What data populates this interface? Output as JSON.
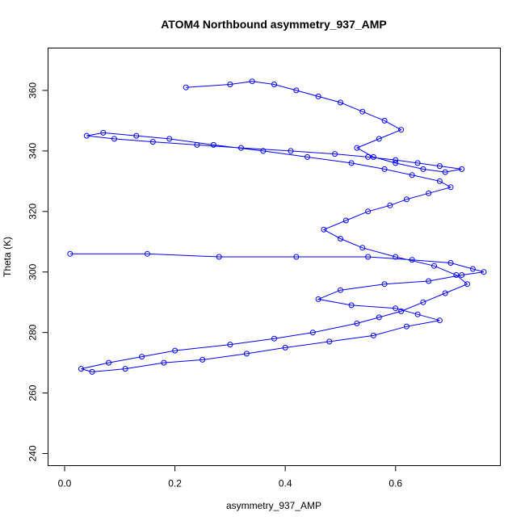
{
  "chart_data": {
    "type": "scatter",
    "title": "ATOM4 Northbound asymmetry_937_AMP",
    "xlabel": "asymmetry_937_AMP",
    "ylabel": "Theta (K)",
    "xlim": [
      -0.03,
      0.79
    ],
    "ylim": [
      236,
      374
    ],
    "xticks": [
      0.0,
      0.2,
      0.4,
      0.6
    ],
    "xtick_labels": [
      "0.0",
      "0.2",
      "0.4",
      "0.6"
    ],
    "yticks": [
      240,
      260,
      280,
      300,
      320,
      340,
      360
    ],
    "ytick_labels": [
      "240",
      "260",
      "280",
      "300",
      "320",
      "340",
      "360"
    ],
    "grid": false,
    "legend": "none",
    "marker": "open-circle",
    "connect_points": true,
    "colors": {
      "series": "#0000ff",
      "axes": "#000000",
      "background": "#ffffff"
    },
    "series": [
      {
        "x": [
          0.01,
          0.15,
          0.28,
          0.42,
          0.55,
          0.63,
          0.7,
          0.74,
          0.76,
          0.72,
          0.66,
          0.58,
          0.5,
          0.46,
          0.52,
          0.6,
          0.64,
          0.68,
          0.62,
          0.56,
          0.48,
          0.4,
          0.33,
          0.25,
          0.18,
          0.11,
          0.05,
          0.03,
          0.08,
          0.14,
          0.2,
          0.3,
          0.38,
          0.45,
          0.53,
          0.57,
          0.61,
          0.65,
          0.69,
          0.73,
          0.71,
          0.67,
          0.6,
          0.54,
          0.5,
          0.47,
          0.51,
          0.55,
          0.59,
          0.62,
          0.66,
          0.7,
          0.68,
          0.63,
          0.58,
          0.52,
          0.44,
          0.36,
          0.27,
          0.19,
          0.13,
          0.07,
          0.04,
          0.09,
          0.16,
          0.24,
          0.32,
          0.41,
          0.49,
          0.55,
          0.6,
          0.64,
          0.68,
          0.72,
          0.69,
          0.65,
          0.6,
          0.56,
          0.53,
          0.57,
          0.61,
          0.58,
          0.54,
          0.5,
          0.46,
          0.42,
          0.38,
          0.34,
          0.3,
          0.22
        ],
        "y": [
          306,
          306,
          305,
          305,
          305,
          304,
          303,
          301,
          300,
          299,
          297,
          296,
          294,
          291,
          289,
          288,
          286,
          284,
          282,
          279,
          277,
          275,
          273,
          271,
          270,
          268,
          267,
          268,
          270,
          272,
          274,
          276,
          278,
          280,
          283,
          285,
          287,
          290,
          293,
          296,
          299,
          302,
          305,
          308,
          311,
          314,
          317,
          320,
          322,
          324,
          326,
          328,
          330,
          332,
          334,
          336,
          338,
          340,
          342,
          344,
          345,
          346,
          345,
          344,
          343,
          342,
          341,
          340,
          339,
          338,
          337,
          336,
          335,
          334,
          333,
          334,
          336,
          338,
          341,
          344,
          347,
          350,
          353,
          356,
          358,
          360,
          362,
          363,
          362,
          361
        ]
      }
    ]
  }
}
